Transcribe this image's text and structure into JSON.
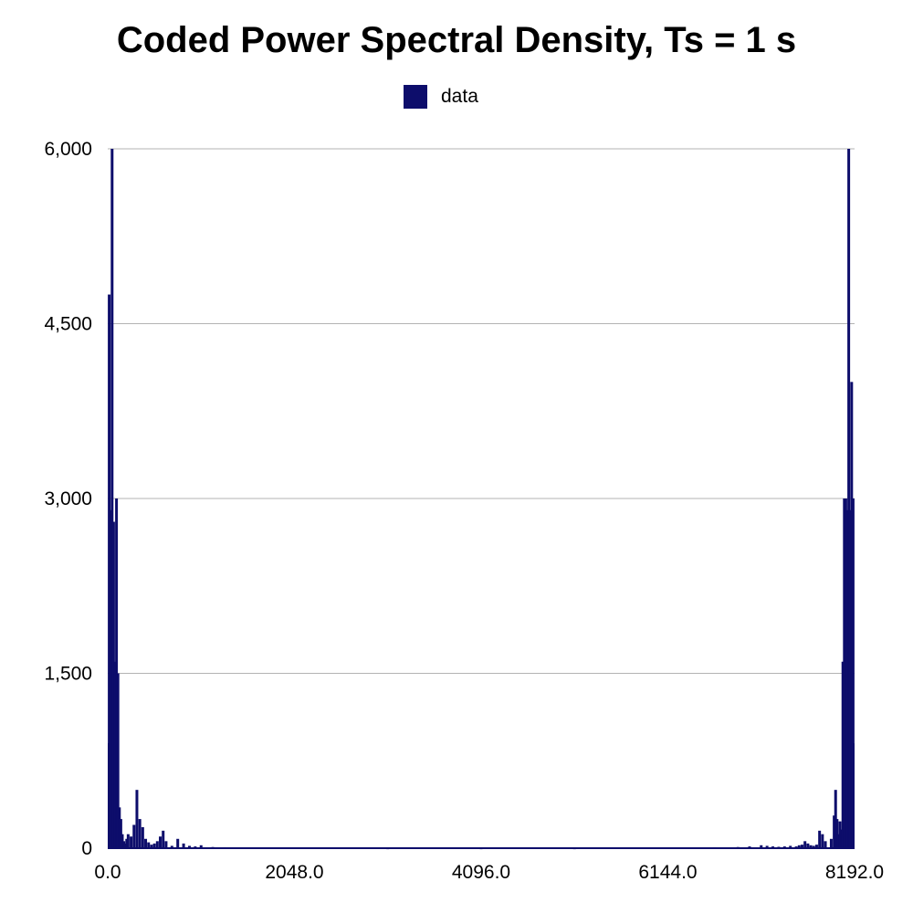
{
  "chart_data": {
    "type": "bar",
    "title": "Coded Power Spectral Density,  Ts = 1 s",
    "xlabel": "",
    "ylabel": "",
    "legend": {
      "position": "top-center",
      "entries": [
        "data"
      ]
    },
    "grid": {
      "horizontal": true,
      "vertical": false
    },
    "colors": {
      "series": "#0d0d6b",
      "grid": "#b3b3b3",
      "background": "#ffffff"
    },
    "xlim": [
      0,
      8192
    ],
    "ylim": [
      0,
      6000
    ],
    "x_ticks": [
      0,
      2048,
      4096,
      6144,
      8192
    ],
    "x_tick_labels": [
      "0.0",
      "2048.0",
      "4096.0",
      "6144.0",
      "8192.0"
    ],
    "y_ticks": [
      0,
      1500,
      3000,
      4500,
      6000
    ],
    "y_tick_labels": [
      "0",
      "1,500",
      "3,000",
      "4,500",
      "6,000"
    ],
    "series": [
      {
        "name": "data",
        "x": [
          0,
          16,
          32,
          48,
          64,
          80,
          96,
          112,
          128,
          144,
          160,
          176,
          192,
          208,
          224,
          256,
          288,
          320,
          352,
          384,
          416,
          448,
          480,
          512,
          544,
          576,
          608,
          640,
          704,
          768,
          832,
          896,
          960,
          1024,
          1152,
          1280,
          1536,
          2048,
          3072,
          4096,
          5120,
          6144,
          6656,
          6912,
          7040,
          7168,
          7232,
          7296,
          7360,
          7424,
          7488,
          7552,
          7584,
          7616,
          7648,
          7680,
          7712,
          7744,
          7776,
          7808,
          7840,
          7872,
          7936,
          7968,
          7984,
          8000,
          8016,
          8032,
          8048,
          8064,
          8080,
          8096,
          8112,
          8128,
          8144,
          8160,
          8176,
          8192
        ],
        "values": [
          900,
          4750,
          2900,
          6000,
          2800,
          1600,
          3000,
          1500,
          350,
          250,
          120,
          60,
          40,
          80,
          120,
          100,
          200,
          500,
          250,
          180,
          80,
          50,
          30,
          40,
          60,
          100,
          150,
          60,
          20,
          80,
          40,
          20,
          15,
          25,
          10,
          8,
          5,
          5,
          3,
          3,
          3,
          5,
          8,
          10,
          15,
          25,
          20,
          15,
          12,
          15,
          20,
          15,
          25,
          30,
          60,
          40,
          25,
          20,
          30,
          150,
          120,
          60,
          80,
          280,
          500,
          250,
          120,
          230,
          160,
          1600,
          3000,
          3000,
          2900,
          6000,
          2900,
          4000,
          3000,
          900
        ]
      }
    ]
  }
}
